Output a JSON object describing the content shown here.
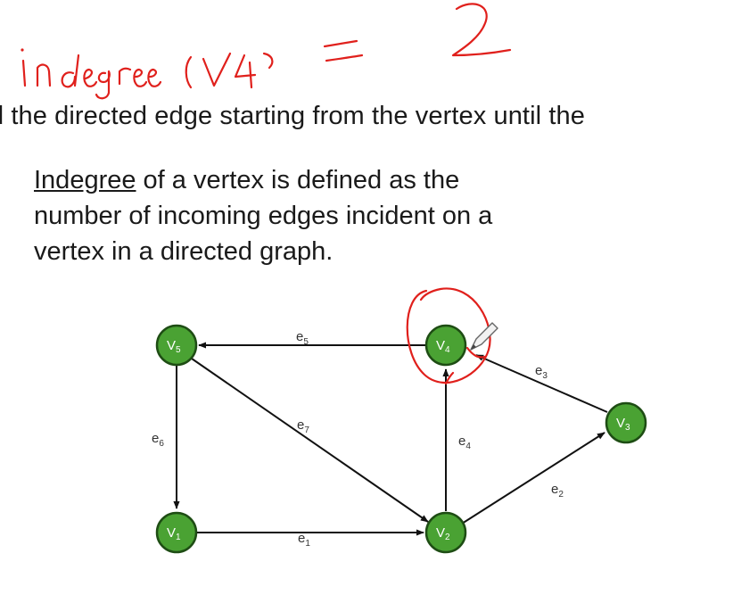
{
  "annotation": {
    "handwritten": "in degree (V4) = 2"
  },
  "top_text": {
    "line": "d the directed edge starting from the vertex until the"
  },
  "definition": {
    "term": "Indegree",
    "rest": " of a vertex is defined as the number of incoming edges incident on a vertex in a directed graph."
  },
  "graph": {
    "colors": {
      "node_fill": "#4aa233",
      "node_stroke": "#1e4d14",
      "edge": "#111111",
      "annotation": "#e0201c"
    },
    "vertices": [
      {
        "id": "v5",
        "base": "V",
        "sub": "5"
      },
      {
        "id": "v4",
        "base": "V",
        "sub": "4"
      },
      {
        "id": "v3",
        "base": "V",
        "sub": "3"
      },
      {
        "id": "v1",
        "base": "V",
        "sub": "1"
      },
      {
        "id": "v2",
        "base": "V",
        "sub": "2"
      }
    ],
    "edges": [
      {
        "id": "e5",
        "base": "e",
        "sub": "5",
        "from": "v4",
        "to": "v5"
      },
      {
        "id": "e3",
        "base": "e",
        "sub": "3",
        "from": "v3",
        "to": "v4"
      },
      {
        "id": "e7",
        "base": "e",
        "sub": "7",
        "from": "v5",
        "to": "v2"
      },
      {
        "id": "e6",
        "base": "e",
        "sub": "6",
        "from": "v5",
        "to": "v1"
      },
      {
        "id": "e4",
        "base": "e",
        "sub": "4",
        "from": "v2",
        "to": "v4"
      },
      {
        "id": "e2",
        "base": "e",
        "sub": "2",
        "from": "v2",
        "to": "v3"
      },
      {
        "id": "e1",
        "base": "e",
        "sub": "1",
        "from": "v1",
        "to": "v2"
      }
    ]
  }
}
